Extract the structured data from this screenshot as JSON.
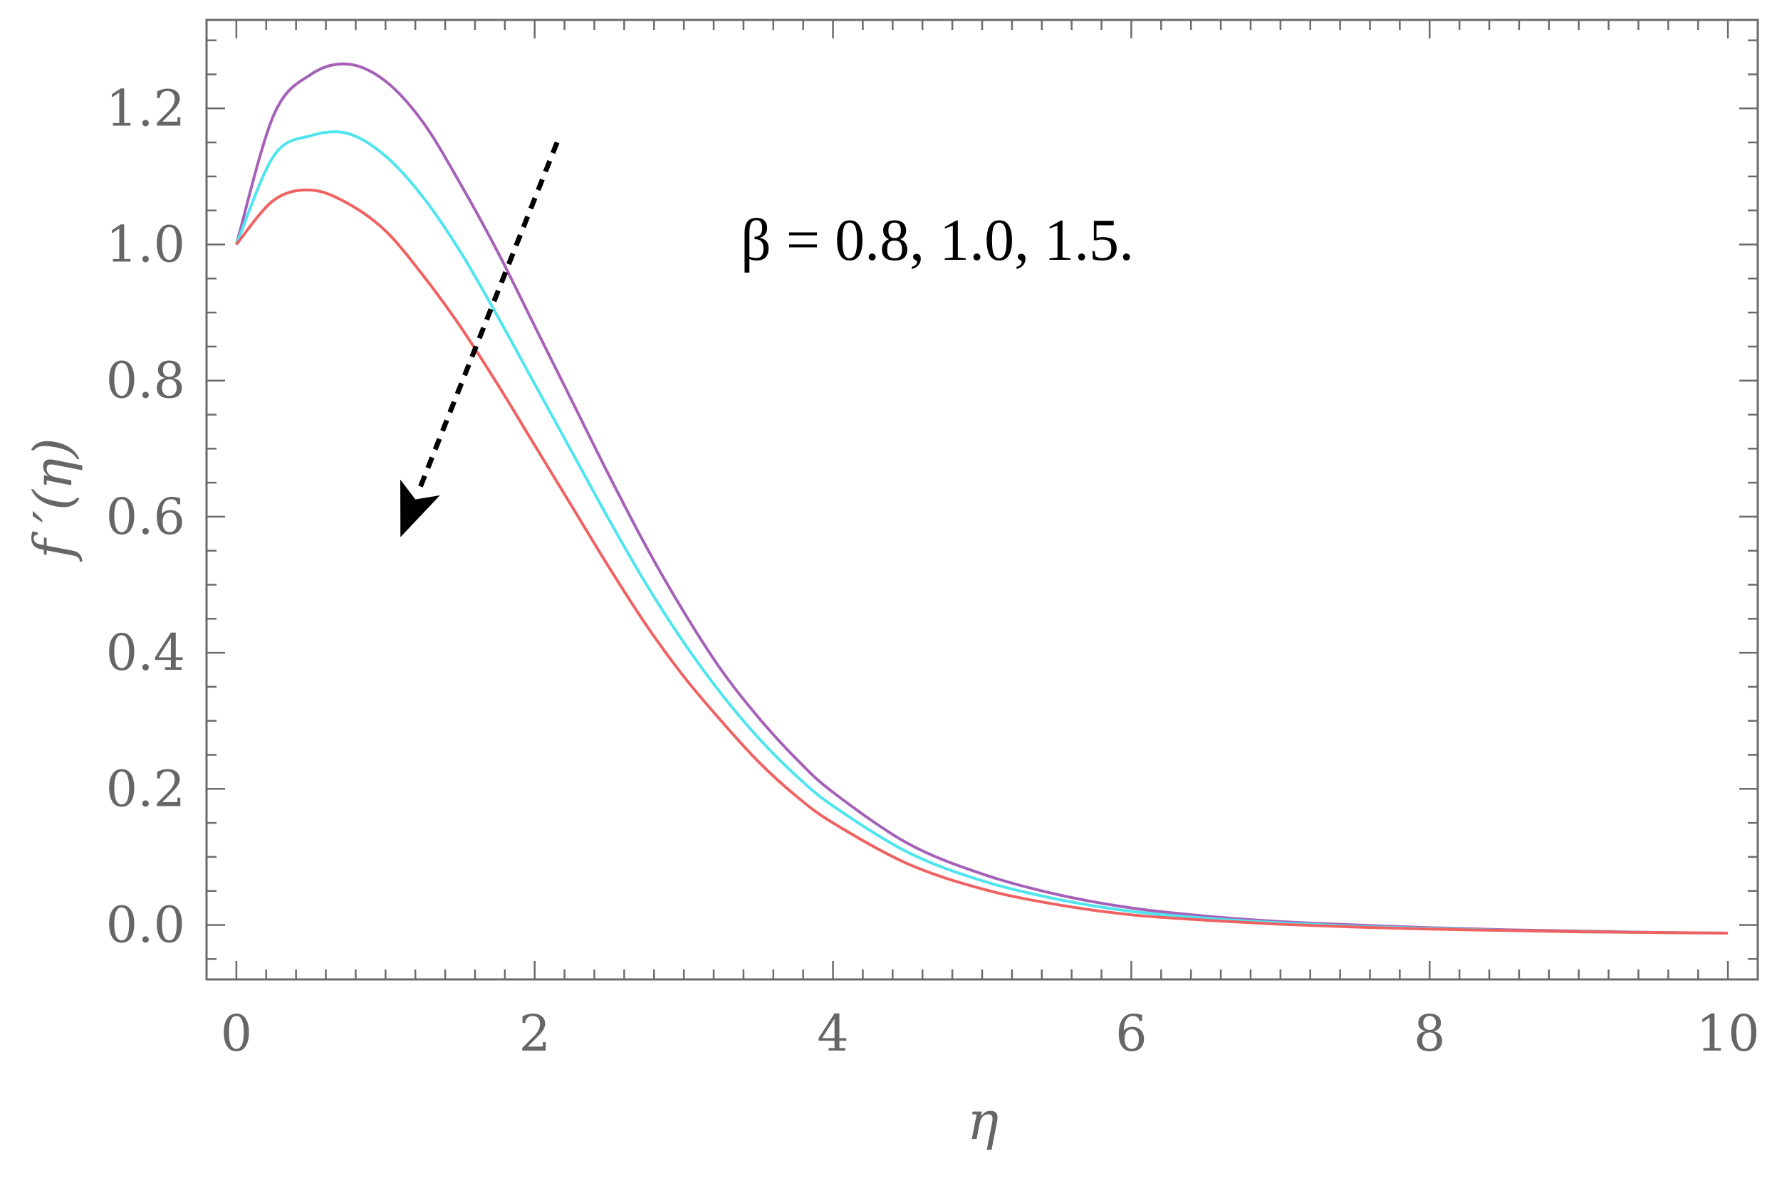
{
  "chart_data": {
    "type": "line",
    "title": "",
    "xlabel": "η",
    "ylabel": "f ′(η)",
    "xlim": [
      -0.2,
      10.2
    ],
    "ylim": [
      -0.08,
      1.33
    ],
    "xticks": [
      0,
      2,
      4,
      6,
      8,
      10
    ],
    "xtick_labels": [
      "0",
      "2",
      "4",
      "6",
      "8",
      "10"
    ],
    "yticks": [
      0.0,
      0.2,
      0.4,
      0.6,
      0.8,
      1.0,
      1.2
    ],
    "ytick_labels": [
      "0.0",
      "0.2",
      "0.4",
      "0.6",
      "0.8",
      "1.0",
      "1.2"
    ],
    "grid": false,
    "annotation": "β = 0.8, 1.0, 1.5.",
    "arrow": {
      "from": [
        2.15,
        1.15
      ],
      "to": [
        1.1,
        0.57
      ],
      "style": "dashed"
    },
    "x": [
      0,
      0.25,
      0.5,
      0.75,
      1.0,
      1.25,
      1.5,
      1.75,
      2.0,
      2.25,
      2.5,
      2.75,
      3.0,
      3.25,
      3.5,
      3.75,
      4.0,
      4.5,
      5.0,
      5.5,
      6.0,
      6.5,
      7.0,
      7.5,
      8.0,
      8.5,
      9.0,
      9.5,
      10.0
    ],
    "series": [
      {
        "color": "#a561b8",
        "values": [
          1.0,
          1.19,
          1.25,
          1.265,
          1.24,
          1.18,
          1.09,
          0.99,
          0.88,
          0.77,
          0.66,
          0.555,
          0.46,
          0.375,
          0.305,
          0.245,
          0.195,
          0.12,
          0.075,
          0.045,
          0.025,
          0.013,
          0.005,
          0.0,
          -0.004,
          -0.007,
          -0.009,
          -0.011,
          -0.012
        ]
      },
      {
        "color": "#4ee5ef",
        "values": [
          1.0,
          1.13,
          1.16,
          1.163,
          1.13,
          1.07,
          0.99,
          0.895,
          0.795,
          0.695,
          0.595,
          0.5,
          0.415,
          0.34,
          0.275,
          0.22,
          0.175,
          0.107,
          0.065,
          0.038,
          0.02,
          0.01,
          0.003,
          -0.002,
          -0.005,
          -0.008,
          -0.01,
          -0.011,
          -0.012
        ]
      },
      {
        "color": "#f06262",
        "values": [
          1.0,
          1.065,
          1.08,
          1.06,
          1.02,
          0.955,
          0.88,
          0.795,
          0.705,
          0.615,
          0.525,
          0.44,
          0.365,
          0.3,
          0.24,
          0.19,
          0.15,
          0.09,
          0.053,
          0.03,
          0.015,
          0.007,
          0.001,
          -0.003,
          -0.006,
          -0.008,
          -0.01,
          -0.011,
          -0.012
        ]
      }
    ]
  }
}
